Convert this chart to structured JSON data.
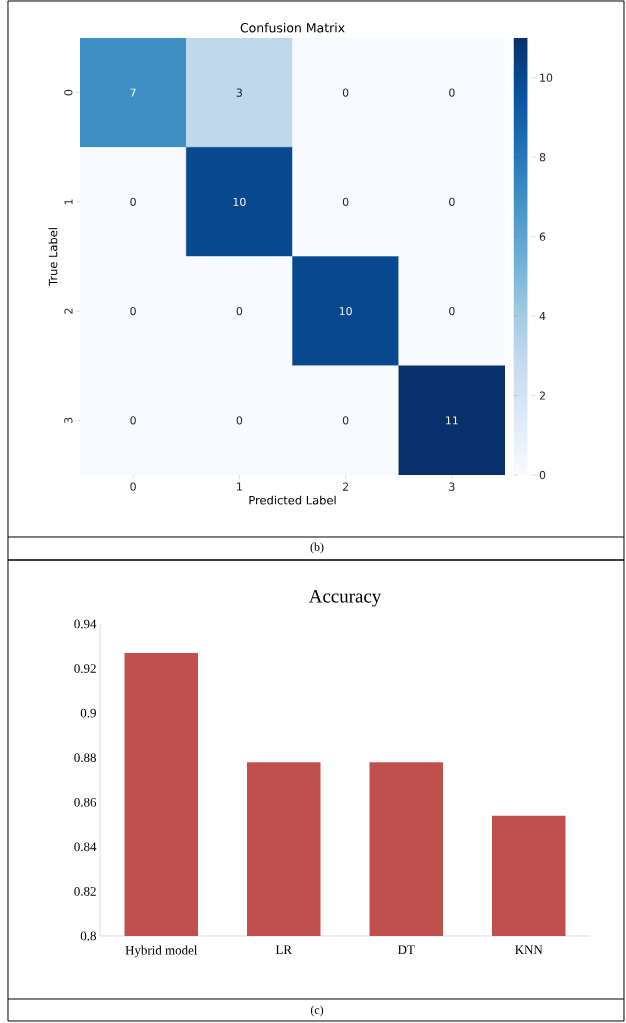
{
  "chart_data": [
    {
      "type": "heatmap",
      "title": "Confusion Matrix",
      "xlabel": "Predicted Label",
      "ylabel": "True Label",
      "categories": [
        "0",
        "1",
        "2",
        "3"
      ],
      "y_categories": [
        "0",
        "1",
        "2",
        "3"
      ],
      "cells": [
        [
          7,
          3,
          0,
          0
        ],
        [
          0,
          10,
          0,
          0
        ],
        [
          0,
          0,
          10,
          0
        ],
        [
          0,
          0,
          0,
          11
        ]
      ],
      "data_labels": true,
      "clim": [
        0,
        11
      ],
      "cticks": [
        0,
        2,
        4,
        6,
        8,
        10
      ],
      "annotations": [
        "(b)"
      ]
    },
    {
      "type": "bar",
      "title": "Accuracy",
      "categories": [
        "Hybrid model",
        "LR",
        "DT",
        "KNN"
      ],
      "values": [
        0.927,
        0.878,
        0.878,
        0.854
      ],
      "color": "#c0504d",
      "ylim": [
        0.8,
        0.94
      ],
      "yticks": [
        0.8,
        0.82,
        0.84,
        0.86,
        0.88,
        0.9,
        0.92,
        0.94
      ],
      "annotations": [
        "(c)"
      ]
    }
  ]
}
